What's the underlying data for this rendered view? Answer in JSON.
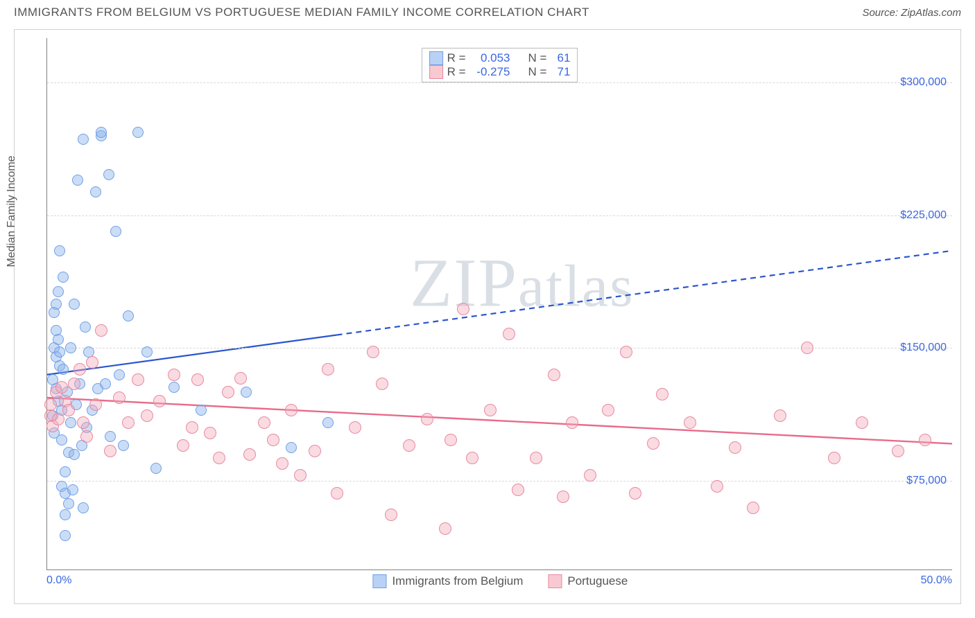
{
  "header": {
    "title": "IMMIGRANTS FROM BELGIUM VS PORTUGUESE MEDIAN FAMILY INCOME CORRELATION CHART",
    "source": "Source: ZipAtlas.com"
  },
  "axes": {
    "ylabel": "Median Family Income",
    "x_min": 0.0,
    "x_max": 50.0,
    "x_tick_left": "0.0%",
    "x_tick_right": "50.0%",
    "y_min": 25000,
    "y_max": 325000,
    "y_ticks": [
      {
        "v": 75000,
        "label": "$75,000"
      },
      {
        "v": 150000,
        "label": "$150,000"
      },
      {
        "v": 225000,
        "label": "$225,000"
      },
      {
        "v": 300000,
        "label": "$300,000"
      }
    ],
    "grid_color": "#d8d8d8",
    "axis_color": "#808080",
    "tick_text_color": "#3a67e0"
  },
  "watermark": "ZIPatlas",
  "legend_bottom": [
    {
      "label": "Immigrants from Belgium",
      "fill": "#b9d1f4",
      "stroke": "#6f9fe6"
    },
    {
      "label": "Portuguese",
      "fill": "#f9c9d2",
      "stroke": "#e7899f"
    }
  ],
  "stats": [
    {
      "swatch_fill": "#b9d1f4",
      "swatch_stroke": "#6f9fe6",
      "r_label": "R =",
      "r": "0.053",
      "n_label": "N =",
      "n": "61"
    },
    {
      "swatch_fill": "#f9c9d2",
      "swatch_stroke": "#e7899f",
      "r_label": "R =",
      "r": "-0.275",
      "n_label": "N =",
      "n": "71"
    }
  ],
  "series": [
    {
      "name": "belgium",
      "marker": {
        "radius": 8,
        "fill": "rgba(140,180,235,0.45)",
        "stroke": "#6f9fe6",
        "stroke_w": 1.3
      },
      "trend": {
        "color": "#2a55cc",
        "width": 2.2,
        "x1": 0,
        "y1": 135000,
        "x2": 50,
        "y2": 205000,
        "solid_until_x": 16
      },
      "points": [
        [
          0.3,
          112000
        ],
        [
          0.3,
          132000
        ],
        [
          0.4,
          102000
        ],
        [
          0.4,
          150000
        ],
        [
          0.4,
          170000
        ],
        [
          0.5,
          127000
        ],
        [
          0.5,
          145000
        ],
        [
          0.5,
          160000
        ],
        [
          0.5,
          175000
        ],
        [
          0.6,
          182000
        ],
        [
          0.6,
          155000
        ],
        [
          0.6,
          120000
        ],
        [
          0.7,
          140000
        ],
        [
          0.7,
          148000
        ],
        [
          0.7,
          205000
        ],
        [
          0.8,
          115000
        ],
        [
          0.8,
          98000
        ],
        [
          0.8,
          72000
        ],
        [
          0.9,
          138000
        ],
        [
          0.9,
          190000
        ],
        [
          1.0,
          80000
        ],
        [
          1.0,
          68000
        ],
        [
          1.0,
          56000
        ],
        [
          1.0,
          44000
        ],
        [
          1.1,
          125000
        ],
        [
          1.2,
          91000
        ],
        [
          1.2,
          62000
        ],
        [
          1.3,
          150000
        ],
        [
          1.3,
          108000
        ],
        [
          1.4,
          70000
        ],
        [
          1.5,
          175000
        ],
        [
          1.5,
          90000
        ],
        [
          1.6,
          118000
        ],
        [
          1.7,
          245000
        ],
        [
          1.8,
          130000
        ],
        [
          1.9,
          95000
        ],
        [
          2.0,
          268000
        ],
        [
          2.0,
          60000
        ],
        [
          2.1,
          162000
        ],
        [
          2.2,
          105000
        ],
        [
          2.3,
          148000
        ],
        [
          2.5,
          115000
        ],
        [
          2.7,
          238000
        ],
        [
          2.8,
          127000
        ],
        [
          3.0,
          270000
        ],
        [
          3.0,
          272000
        ],
        [
          3.2,
          130000
        ],
        [
          3.4,
          248000
        ],
        [
          3.5,
          100000
        ],
        [
          3.8,
          216000
        ],
        [
          4.0,
          135000
        ],
        [
          4.2,
          95000
        ],
        [
          4.5,
          168000
        ],
        [
          5.0,
          272000
        ],
        [
          5.5,
          148000
        ],
        [
          6.0,
          82000
        ],
        [
          7.0,
          128000
        ],
        [
          8.5,
          115000
        ],
        [
          11.0,
          125000
        ],
        [
          13.5,
          94000
        ],
        [
          15.5,
          108000
        ]
      ]
    },
    {
      "name": "portuguese",
      "marker": {
        "radius": 9,
        "fill": "rgba(244,170,185,0.42)",
        "stroke": "#e7899f",
        "stroke_w": 1.3
      },
      "trend": {
        "color": "#e86b8a",
        "width": 2.4,
        "x1": 0,
        "y1": 122000,
        "x2": 50,
        "y2": 96000,
        "solid_until_x": 50
      },
      "points": [
        [
          0.2,
          112000
        ],
        [
          0.2,
          118000
        ],
        [
          0.3,
          106000
        ],
        [
          0.5,
          125000
        ],
        [
          0.6,
          110000
        ],
        [
          0.8,
          128000
        ],
        [
          1.0,
          120000
        ],
        [
          1.2,
          115000
        ],
        [
          1.5,
          130000
        ],
        [
          1.8,
          138000
        ],
        [
          2.0,
          108000
        ],
        [
          2.2,
          100000
        ],
        [
          2.5,
          142000
        ],
        [
          2.7,
          118000
        ],
        [
          3.0,
          160000
        ],
        [
          3.5,
          92000
        ],
        [
          4.0,
          122000
        ],
        [
          4.5,
          108000
        ],
        [
          5.0,
          132000
        ],
        [
          5.5,
          112000
        ],
        [
          6.2,
          120000
        ],
        [
          7.0,
          135000
        ],
        [
          7.5,
          95000
        ],
        [
          8.0,
          105000
        ],
        [
          8.3,
          132000
        ],
        [
          9.0,
          102000
        ],
        [
          9.5,
          88000
        ],
        [
          10.0,
          125000
        ],
        [
          10.7,
          133000
        ],
        [
          11.2,
          90000
        ],
        [
          12.0,
          108000
        ],
        [
          12.5,
          98000
        ],
        [
          13.0,
          85000
        ],
        [
          13.5,
          115000
        ],
        [
          14.0,
          78000
        ],
        [
          14.8,
          92000
        ],
        [
          15.5,
          138000
        ],
        [
          16.0,
          68000
        ],
        [
          17.0,
          105000
        ],
        [
          18.0,
          148000
        ],
        [
          18.5,
          130000
        ],
        [
          19.0,
          56000
        ],
        [
          20.0,
          95000
        ],
        [
          21.0,
          110000
        ],
        [
          22.0,
          48000
        ],
        [
          22.3,
          98000
        ],
        [
          23.0,
          172000
        ],
        [
          23.5,
          88000
        ],
        [
          24.5,
          115000
        ],
        [
          25.5,
          158000
        ],
        [
          26.0,
          70000
        ],
        [
          27.0,
          88000
        ],
        [
          28.0,
          135000
        ],
        [
          28.5,
          66000
        ],
        [
          29.0,
          108000
        ],
        [
          30.0,
          78000
        ],
        [
          31.0,
          115000
        ],
        [
          32.0,
          148000
        ],
        [
          32.5,
          68000
        ],
        [
          33.5,
          96000
        ],
        [
          34.0,
          124000
        ],
        [
          35.5,
          108000
        ],
        [
          37.0,
          72000
        ],
        [
          38.0,
          94000
        ],
        [
          39.0,
          60000
        ],
        [
          40.5,
          112000
        ],
        [
          42.0,
          150000
        ],
        [
          43.5,
          88000
        ],
        [
          45.0,
          108000
        ],
        [
          47.0,
          92000
        ],
        [
          48.5,
          98000
        ]
      ]
    }
  ]
}
